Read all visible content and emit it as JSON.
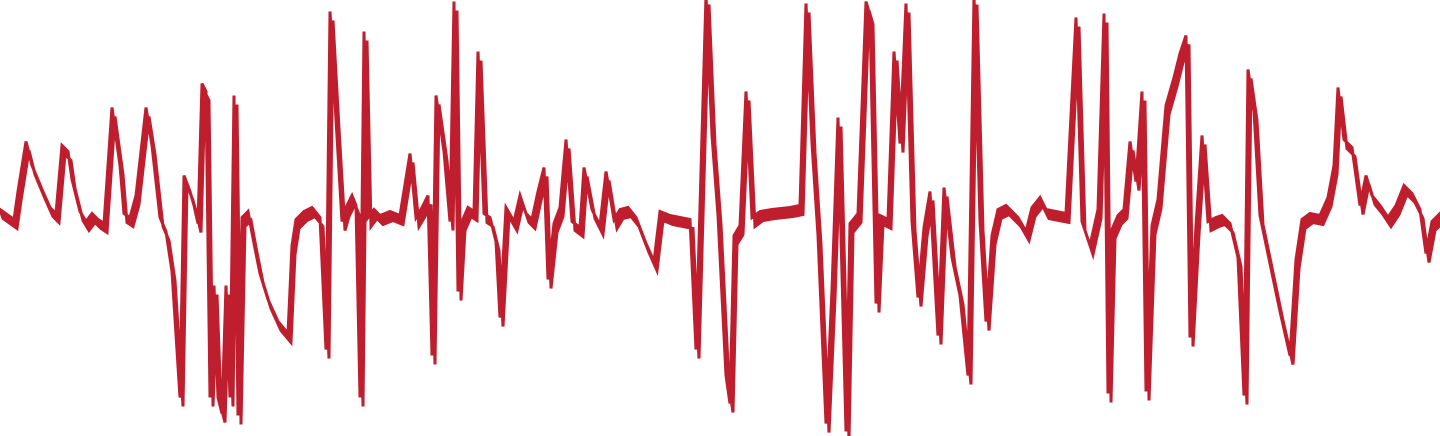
{
  "graphic": {
    "kind": "audio-waveform",
    "fill_color": "#BE1E2D",
    "background_color": "#FFFFFF"
  }
}
